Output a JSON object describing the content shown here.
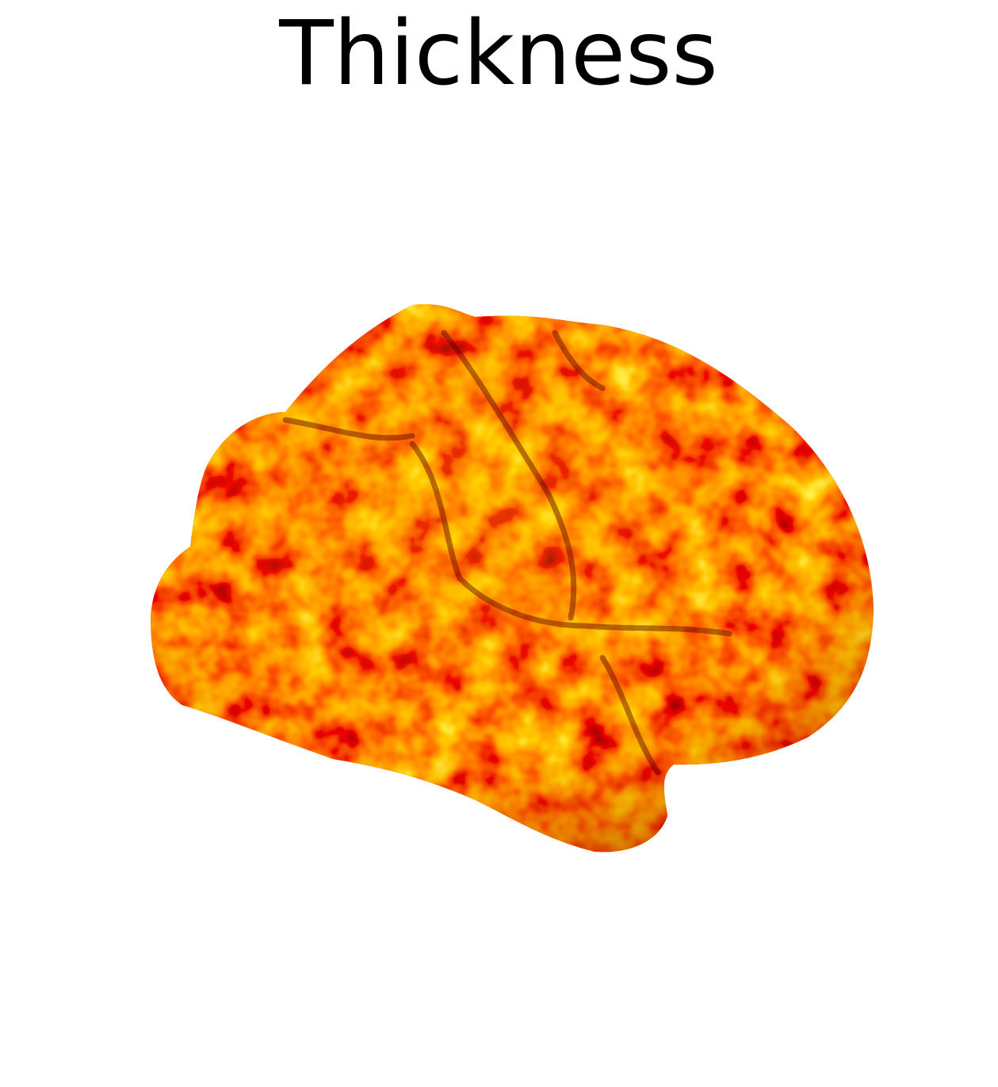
{
  "title": "Thickness"
}
